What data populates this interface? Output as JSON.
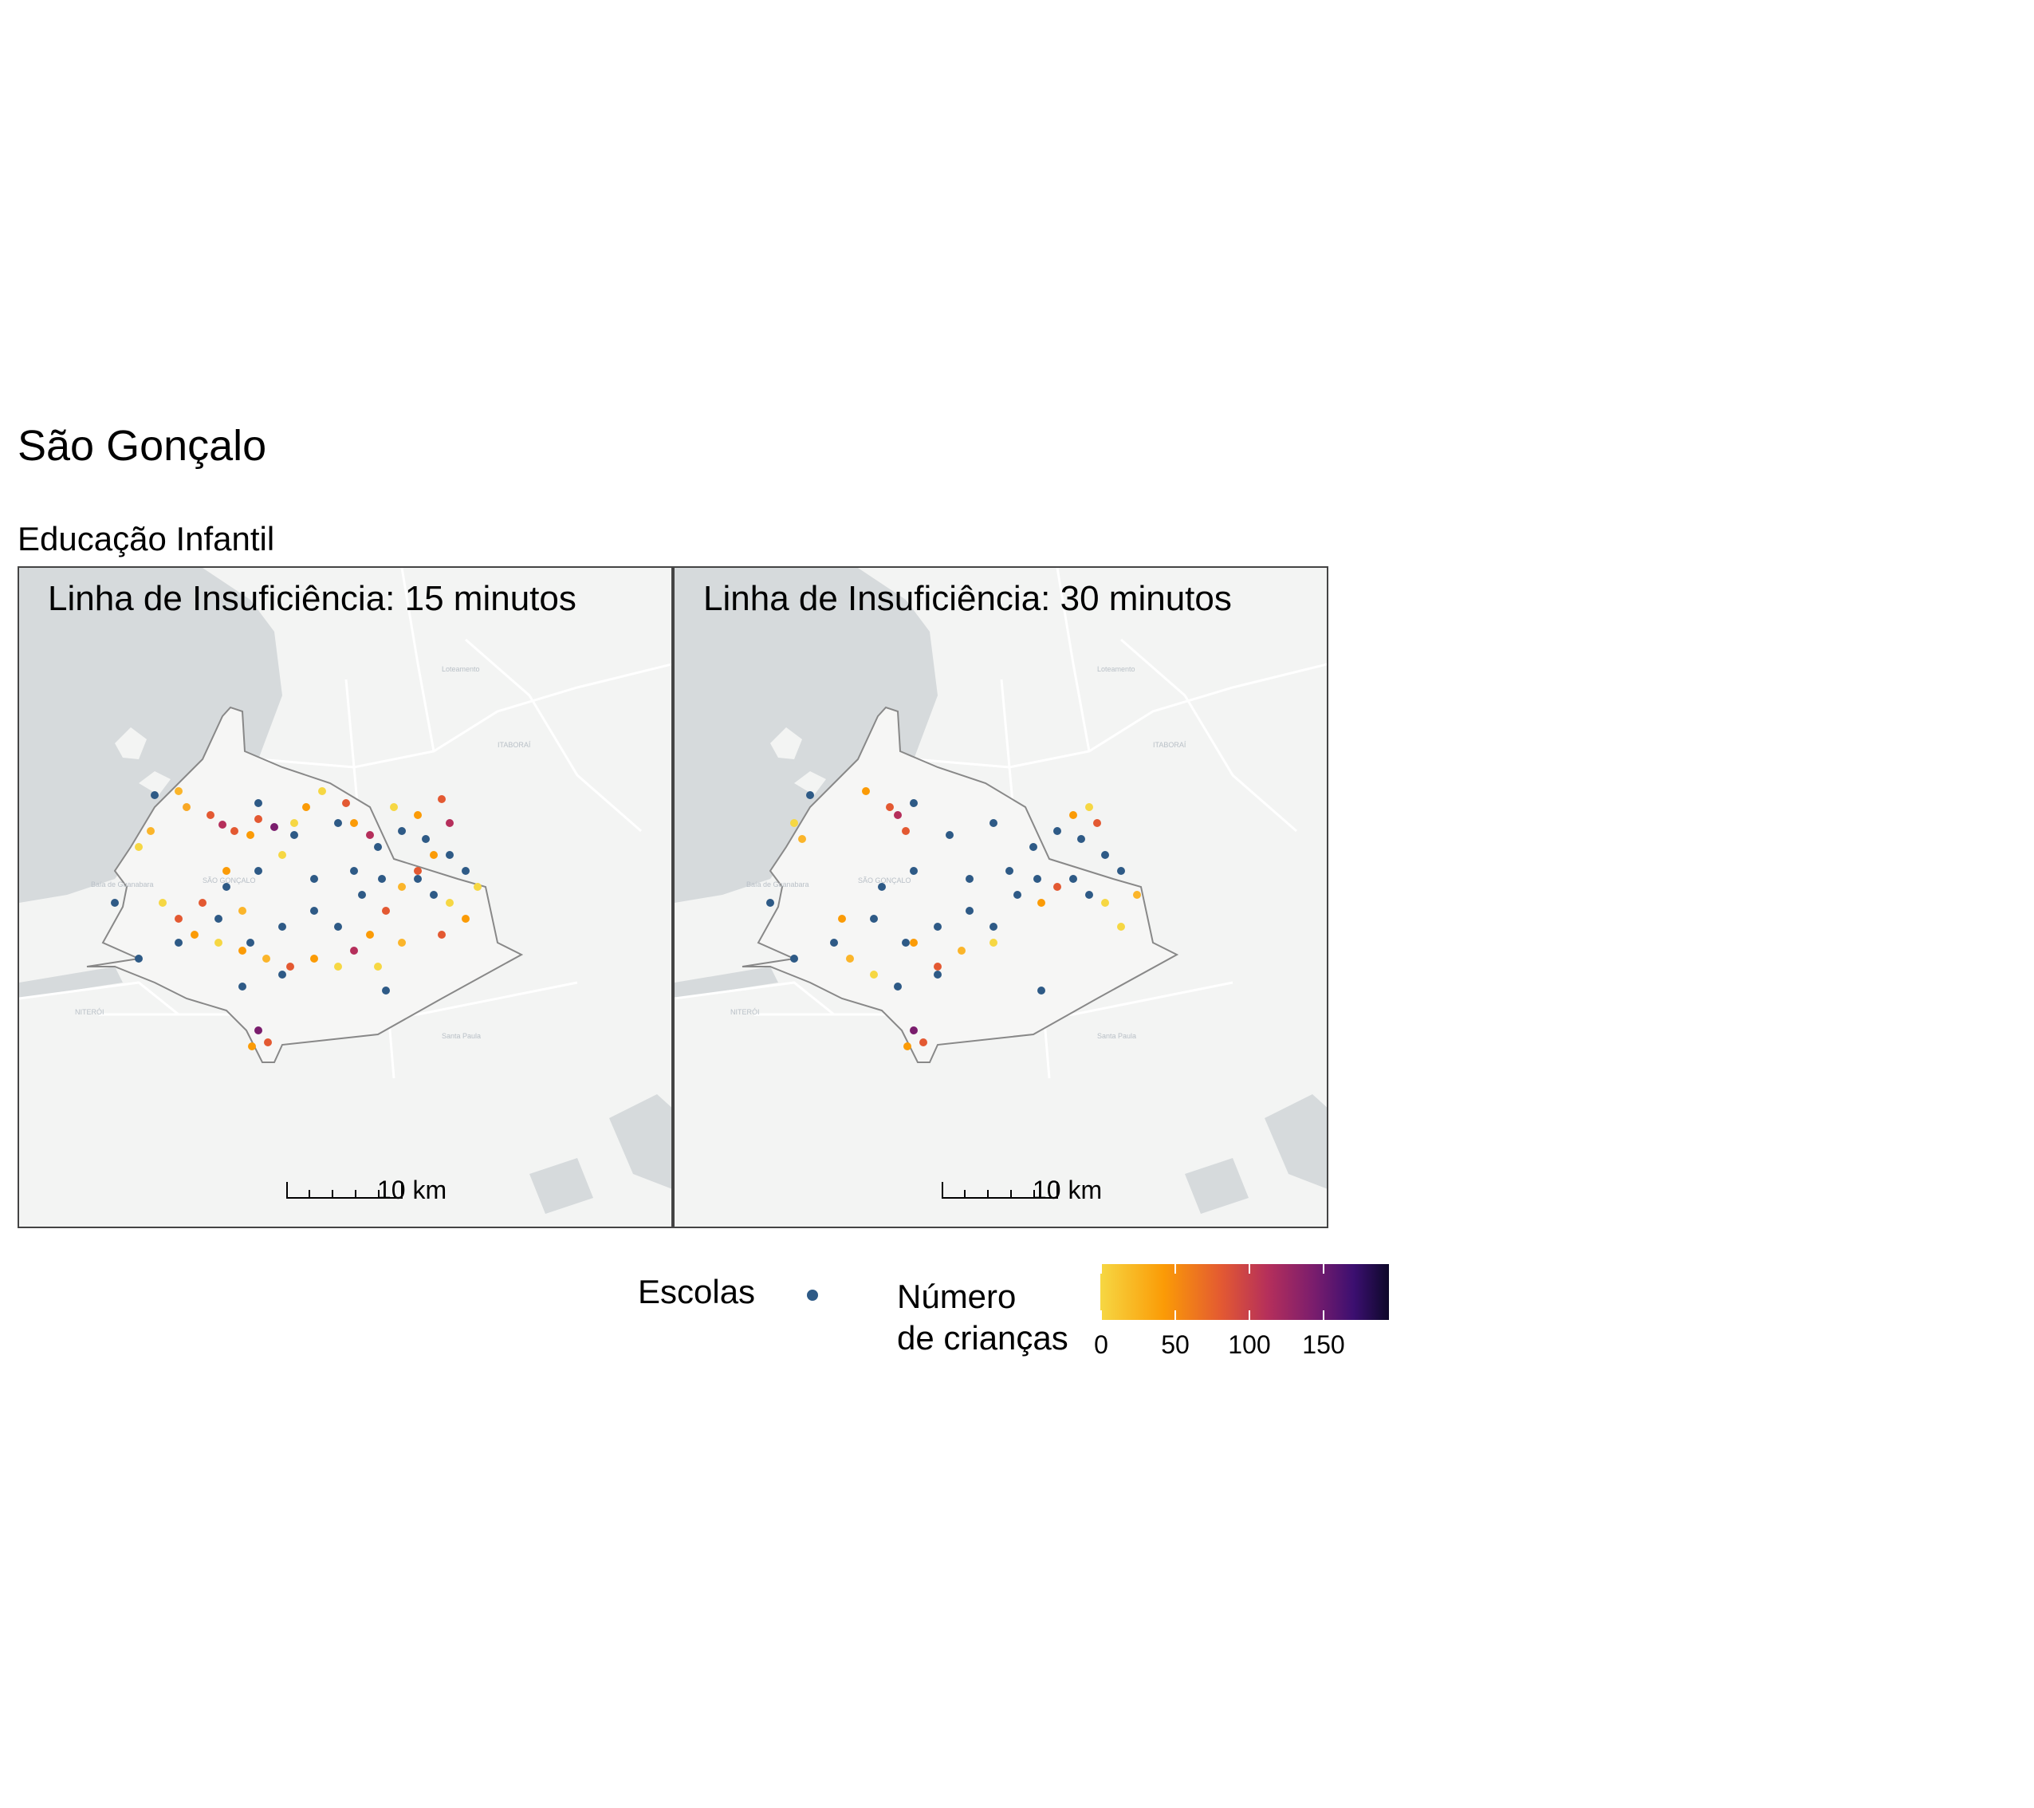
{
  "title": "São Gonçalo",
  "subtitle": "Educação Infantil",
  "panels": [
    {
      "label": "Linha de Insuficiência: 15 minutos",
      "scale_label": "10 km"
    },
    {
      "label": "Linha de Insuficiência: 30 minutos",
      "scale_label": "10 km"
    }
  ],
  "legend": {
    "schools_label": "Escolas",
    "schools_color": "#2e5a86",
    "children_title_line1": "Número",
    "children_title_line2": "de crianças",
    "ticks": [
      "0",
      "50",
      "100",
      "150"
    ],
    "palette": [
      "#f6d743",
      "#fb9b06",
      "#e35932",
      "#b52f5b",
      "#7a1d6d",
      "#3b0f70",
      "#0d0829"
    ]
  },
  "basemap_labels": [
    "Loteamento Cidade Grande Rio",
    "ITABORAÍ",
    "LARGO DE SÃO SEBASTIÃO",
    "SÃO GONÇALO",
    "NITERÓI",
    "Santa Paula",
    "MARICÁ",
    "Baía de Guanabara"
  ]
}
